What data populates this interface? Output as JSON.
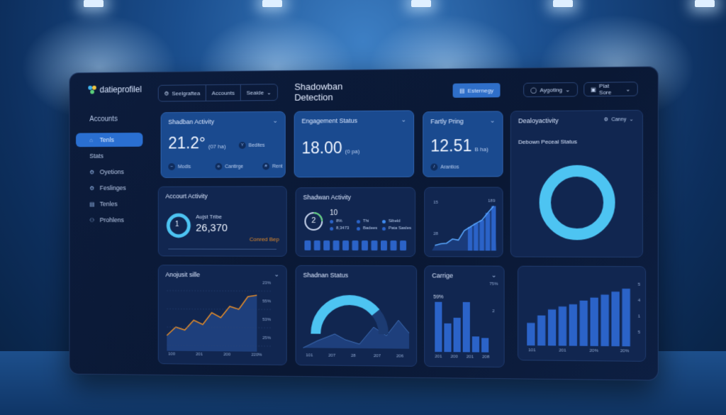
{
  "app": {
    "logo_text": "datieprofilel"
  },
  "sidebar": {
    "heading": "Accounts",
    "items": [
      {
        "label": "Tenls",
        "icon": "tools-icon",
        "glyph": "⌂",
        "active": true
      },
      {
        "label": "Stats",
        "icon": "",
        "glyph": "",
        "active": false
      },
      {
        "label": "Oyetions",
        "icon": "gear-icon",
        "glyph": "⚙",
        "active": false
      },
      {
        "label": "Feslinges",
        "icon": "settings-icon",
        "glyph": "⚙",
        "active": false
      },
      {
        "label": "Tenles",
        "icon": "list-icon",
        "glyph": "▤",
        "active": false
      },
      {
        "label": "Prohlens",
        "icon": "user-icon",
        "glyph": "⚇",
        "active": false
      }
    ]
  },
  "topbar": {
    "tabs": [
      "Seelgraftea",
      "Accounts",
      "Seaide"
    ],
    "title": "Shadowban Detection",
    "primary_button": "Esternegy",
    "pill_1": "Aygoting",
    "pill_2": "Plat Sore"
  },
  "cards": {
    "shadban_activity": {
      "title": "Shadban Activity",
      "value": "21.2°",
      "unit": "(07 ha)",
      "side_label": "Bedites",
      "chip1": "Modls",
      "chip2": "Cantirge",
      "chip3": "Rent"
    },
    "engagement_status": {
      "title": "Engagement Status",
      "value": "18.00",
      "unit": "(0 pa)"
    },
    "fartly_pring": {
      "title": "Fartly Pring",
      "value": "12.51",
      "unit": "B ha)",
      "chip": "Arantios"
    },
    "dealoy_activity": {
      "title": "Dealoyactivity",
      "dropdown": "Canny",
      "subtitle": "Debown Peceal Status",
      "donut_fraction": 1.0
    },
    "account_activity": {
      "title": "Accourt Activity",
      "badge": "1",
      "label": "Aujst Tribe",
      "value": "26,370",
      "link": "Conred Bep"
    },
    "shadwan_activity": {
      "title": "Shadwan Activity",
      "gauge_value": "2",
      "count": "10",
      "legend": [
        "8%",
        "Thi",
        "Sibeld",
        "8,3473",
        "Badees",
        "Pata Sasles"
      ],
      "bars": [
        0.7,
        0.7,
        0.7,
        0.7,
        0.7,
        0.7,
        0.7,
        0.7,
        0.7,
        0.7,
        0.7
      ]
    },
    "trend_line": {
      "labels": [
        "15",
        "28",
        "189"
      ],
      "values": [
        10,
        13,
        14,
        22,
        20,
        38,
        45,
        52,
        58,
        72,
        85
      ]
    },
    "anojust_sile": {
      "title": "Anojusit sille",
      "y_labels": [
        "23%",
        "55%",
        "53%",
        "25%"
      ],
      "x_labels": [
        "100",
        "201",
        "200",
        "220%"
      ],
      "values": [
        22,
        34,
        30,
        44,
        38,
        55,
        48,
        64,
        60,
        78,
        80
      ]
    },
    "shadran_status": {
      "title": "Shadnan Status",
      "x_labels": [
        "101",
        "207",
        "28",
        "207",
        "206"
      ],
      "gauge_fraction": 0.78
    },
    "carriage": {
      "title": "Carrige",
      "tag": "59%",
      "y_labels": [
        "75%",
        "2"
      ],
      "x_labels": [
        "201",
        "200",
        "201",
        "208"
      ],
      "values": [
        70,
        40,
        48,
        70,
        22,
        20
      ]
    },
    "bars_right": {
      "y_labels": [
        "5",
        "4",
        "1",
        "5"
      ],
      "x_labels": [
        "101",
        "201",
        "20%",
        "20%"
      ],
      "values": [
        30,
        40,
        48,
        52,
        55,
        60,
        64,
        68,
        72,
        76
      ]
    }
  },
  "colors": {
    "accent": "#2f6fc9",
    "cyan": "#4dc4f2",
    "orange": "#e08a2a"
  }
}
